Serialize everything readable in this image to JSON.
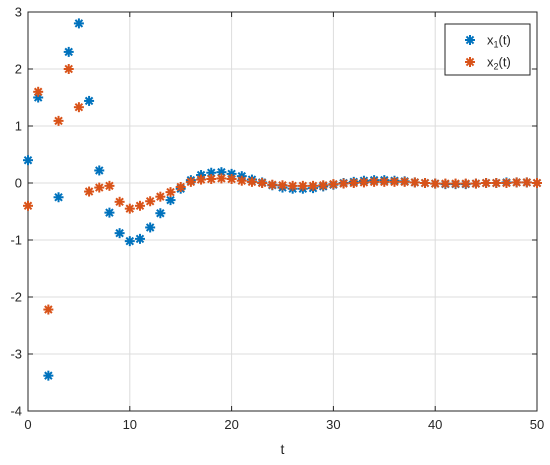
{
  "chart_data": {
    "type": "scatter",
    "xlabel": "t",
    "ylabel": "",
    "xlim": [
      0,
      50
    ],
    "ylim": [
      -4,
      3
    ],
    "xticks": [
      0,
      10,
      20,
      30,
      40,
      50
    ],
    "yticks": [
      -4,
      -3,
      -2,
      -1,
      0,
      1,
      2,
      3
    ],
    "grid": true,
    "legend_position": "top-right",
    "marker": "asterisk",
    "x": [
      0,
      1,
      2,
      3,
      4,
      5,
      6,
      7,
      8,
      9,
      10,
      11,
      12,
      13,
      14,
      15,
      16,
      17,
      18,
      19,
      20,
      21,
      22,
      23,
      24,
      25,
      26,
      27,
      28,
      29,
      30,
      31,
      32,
      33,
      34,
      35,
      36,
      37,
      38,
      39,
      40,
      41,
      42,
      43,
      44,
      45,
      46,
      47,
      48,
      49,
      50
    ],
    "series": [
      {
        "name_main": "x",
        "name_sub": "1",
        "name_suffix": "(t)",
        "color": "#0072BD",
        "values": [
          0.4,
          1.5,
          -3.38,
          -0.25,
          2.3,
          2.8,
          1.44,
          0.22,
          -0.52,
          -0.88,
          -1.02,
          -0.98,
          -0.78,
          -0.53,
          -0.3,
          -0.1,
          0.05,
          0.14,
          0.18,
          0.19,
          0.16,
          0.12,
          0.06,
          0.01,
          -0.04,
          -0.08,
          -0.1,
          -0.1,
          -0.09,
          -0.06,
          -0.03,
          0.0,
          0.02,
          0.04,
          0.05,
          0.05,
          0.04,
          0.03,
          0.01,
          0.0,
          -0.01,
          -0.02,
          -0.02,
          -0.02,
          -0.01,
          0.0,
          0.0,
          0.01,
          0.01,
          0.01,
          0.0
        ]
      },
      {
        "name_main": "x",
        "name_sub": "2",
        "name_suffix": "(t)",
        "color": "#D95319",
        "values": [
          -0.4,
          1.6,
          -2.22,
          1.09,
          2.0,
          1.33,
          -0.15,
          -0.08,
          -0.05,
          -0.33,
          -0.45,
          -0.4,
          -0.32,
          -0.24,
          -0.16,
          -0.07,
          0.02,
          0.06,
          0.07,
          0.08,
          0.07,
          0.04,
          0.02,
          0.0,
          -0.03,
          -0.04,
          -0.05,
          -0.05,
          -0.05,
          -0.04,
          -0.02,
          -0.01,
          0.0,
          0.01,
          0.02,
          0.02,
          0.02,
          0.02,
          0.01,
          0.0,
          -0.01,
          -0.01,
          -0.01,
          -0.01,
          -0.01,
          0.0,
          0.0,
          0.0,
          0.01,
          0.01,
          0.0
        ]
      }
    ]
  }
}
